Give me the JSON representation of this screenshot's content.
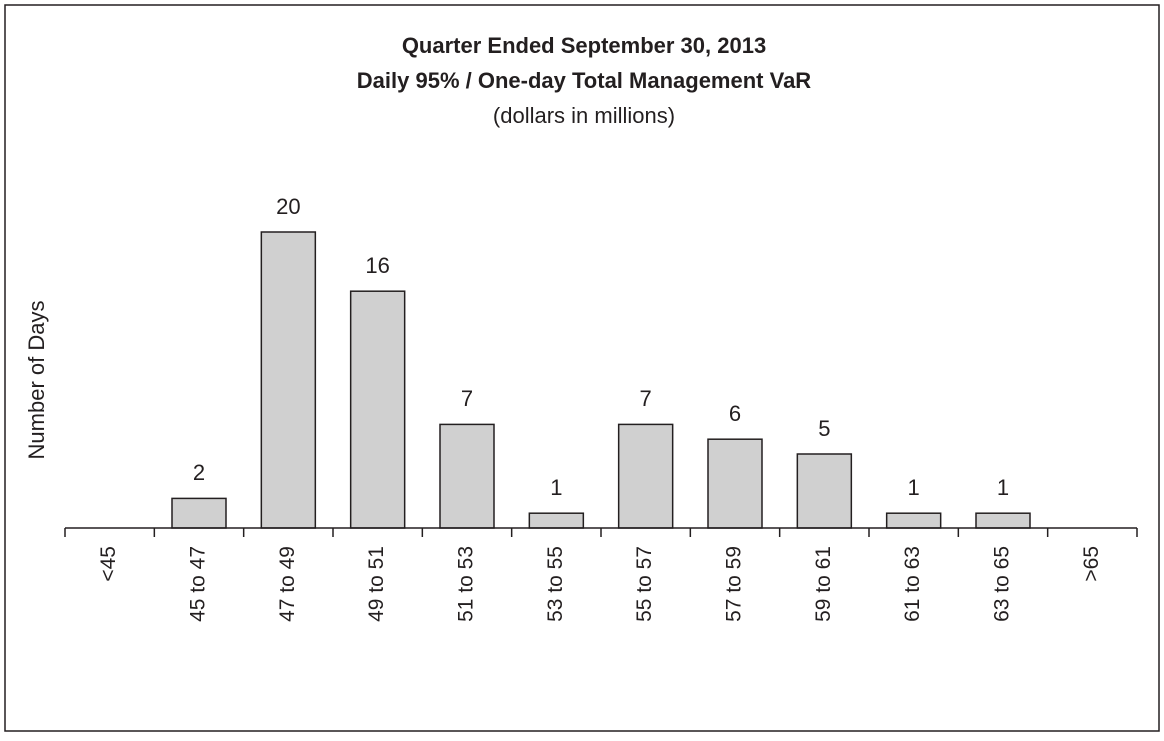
{
  "chart_data": {
    "type": "bar",
    "title": "Quarter Ended September 30, 2013",
    "subtitle": "Daily 95% / One-day Total Management VaR",
    "note": "(dollars in millions)",
    "y_label": "Number of Days",
    "categories": [
      "<45",
      "45 to 47",
      "47 to 49",
      "49 to 51",
      "51 to 53",
      "53 to 55",
      "55 to 57",
      "57 to 59",
      "59 to 61",
      "61 to 63",
      "63 to 65",
      ">65"
    ],
    "values": [
      null,
      2,
      20,
      16,
      7,
      1,
      7,
      6,
      5,
      1,
      1,
      null
    ],
    "color": "#d0d0d0",
    "ylim": [
      0,
      20
    ]
  }
}
